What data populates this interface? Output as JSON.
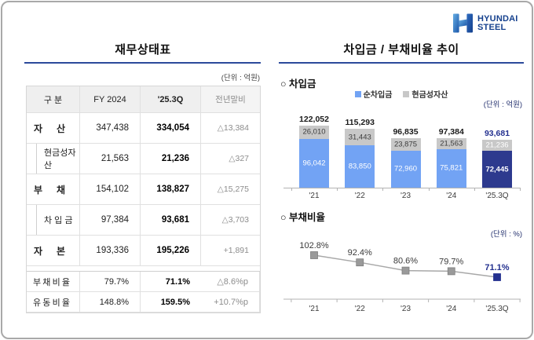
{
  "logo": {
    "line1": "HYUNDAI",
    "line2": "STEEL"
  },
  "colors": {
    "underline": "#2c4a9b",
    "accent_navy": "#23308f",
    "bar_blue": "#72a3f4",
    "bar_gray": "#c8c8c8",
    "bar_navy": "#2d3a8e",
    "line_gray": "#a8a8a8",
    "marker_gray": "#9a9a9a",
    "logo_navy": "#16418e"
  },
  "left_panel": {
    "title": "재무상태표",
    "unit": "(단위 : 억원)",
    "table": {
      "headers": [
        "구  분",
        "FY 2024",
        "'25.3Q",
        "전년말비"
      ],
      "rows": [
        {
          "type": "main",
          "label": "자 산",
          "fy": "347,438",
          "q": "334,054",
          "yoy": "△13,384"
        },
        {
          "type": "sub",
          "label": "현금성자산",
          "fy": "21,563",
          "q": "21,236",
          "yoy": "△327"
        },
        {
          "type": "main",
          "label": "부 채",
          "fy": "154,102",
          "q": "138,827",
          "yoy": "△15,275"
        },
        {
          "type": "sub",
          "label": "차 입 금",
          "fy": "97,384",
          "q": "93,681",
          "yoy": "△3,703"
        },
        {
          "type": "main",
          "label": "자 본",
          "fy": "193,336",
          "q": "195,226",
          "yoy": "+1,891"
        },
        {
          "type": "separator"
        },
        {
          "type": "ratio",
          "label": "부 채 비 율",
          "fy": "79.7%",
          "q": "71.1%",
          "yoy": "△8.6%p"
        },
        {
          "type": "ratio",
          "label": "유 동 비 율",
          "fy": "148.8%",
          "q": "159.5%",
          "yoy": "+10.7%p"
        }
      ]
    }
  },
  "right_panel": {
    "title": "차입금 / 부채비율 추이"
  },
  "chart_data": [
    {
      "type": "bar",
      "section_label": "○ 차입금",
      "unit": "(단위 : 억원)",
      "categories": [
        "'21",
        "'22",
        "'23",
        "'24",
        "'25.3Q"
      ],
      "series": [
        {
          "name": "순차입금",
          "values": [
            96042,
            83850,
            72960,
            75821,
            72445
          ]
        },
        {
          "name": "현금성자산",
          "values": [
            26010,
            31443,
            23875,
            21563,
            21236
          ]
        }
      ],
      "totals": [
        122052,
        115293,
        96835,
        97384,
        93681
      ],
      "highlight_index": 4,
      "legend_position": "top-center",
      "stacked": true,
      "grid": false
    },
    {
      "type": "line",
      "section_label": "○ 부채비율",
      "unit": "(단위 : %)",
      "categories": [
        "'21",
        "'22",
        "'23",
        "'24",
        "'25.3Q"
      ],
      "values": [
        102.8,
        92.4,
        80.6,
        79.7,
        71.1
      ],
      "highlight_index": 4,
      "marker": "square",
      "grid": false,
      "ylim": [
        65,
        110
      ]
    }
  ]
}
